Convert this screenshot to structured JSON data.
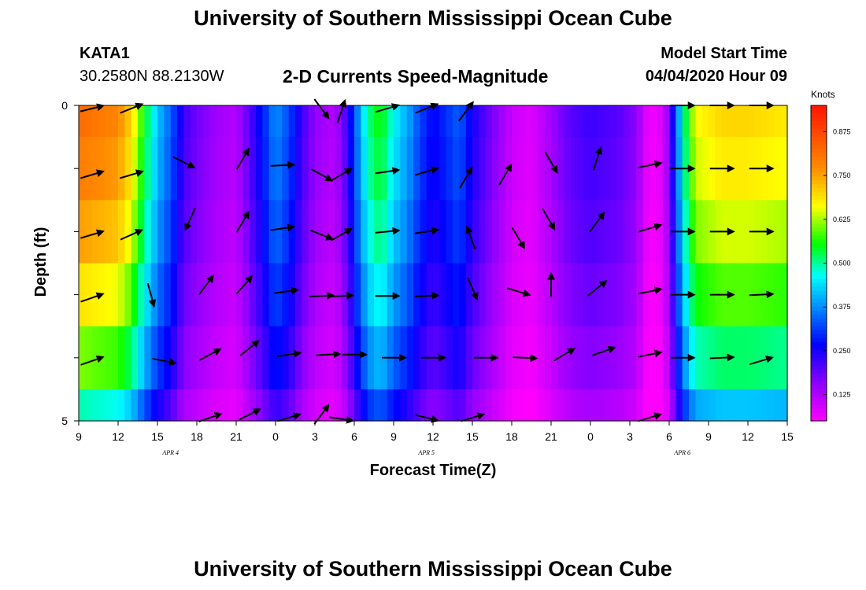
{
  "header": {
    "title": "University of Southern Mississippi Ocean Cube",
    "station_id": "KATA1",
    "station_coords": "30.2580N 88.2130W",
    "plot_title": "2-D Currents Speed-Magnitude",
    "model_label": "Model Start Time",
    "model_value": "04/04/2020 Hour 09"
  },
  "footer": {
    "title": "University of Southern Mississippi Ocean Cube"
  },
  "chart_data": {
    "type": "heatmap",
    "title": "2-D Currents Speed-Magnitude",
    "xlabel": "Forecast Time(Z)",
    "ylabel": "Depth (ft)",
    "x_range_hours": [
      0,
      54
    ],
    "x_ticks": [
      {
        "h": 0,
        "label": "9"
      },
      {
        "h": 3,
        "label": "12"
      },
      {
        "h": 6,
        "label": "15"
      },
      {
        "h": 9,
        "label": "18"
      },
      {
        "h": 12,
        "label": "21"
      },
      {
        "h": 15,
        "label": "0"
      },
      {
        "h": 18,
        "label": "3"
      },
      {
        "h": 21,
        "label": "6"
      },
      {
        "h": 24,
        "label": "9"
      },
      {
        "h": 27,
        "label": "12"
      },
      {
        "h": 30,
        "label": "15"
      },
      {
        "h": 33,
        "label": "18"
      },
      {
        "h": 36,
        "label": "21"
      },
      {
        "h": 39,
        "label": "0"
      },
      {
        "h": 42,
        "label": "3"
      },
      {
        "h": 45,
        "label": "6"
      },
      {
        "h": 48,
        "label": "9"
      },
      {
        "h": 51,
        "label": "12"
      },
      {
        "h": 54,
        "label": "15"
      }
    ],
    "date_labels": [
      {
        "h": 7,
        "label": "APR 4"
      },
      {
        "h": 26.5,
        "label": "APR 5"
      },
      {
        "h": 46,
        "label": "APR 6"
      }
    ],
    "y_range": [
      0,
      5
    ],
    "y_ticks": [
      {
        "v": 0,
        "label": "0"
      },
      {
        "v": 1,
        "label": ""
      },
      {
        "v": 2,
        "label": ""
      },
      {
        "v": 3,
        "label": ""
      },
      {
        "v": 4,
        "label": ""
      },
      {
        "v": 5,
        "label": "5"
      }
    ],
    "colorbar": {
      "title": "Knots",
      "range": [
        0.05,
        0.95
      ],
      "ticks": [
        "0.125",
        "0.250",
        "0.375",
        "0.500",
        "0.625",
        "0.750",
        "0.875"
      ],
      "tick_values": [
        0.125,
        0.25,
        0.375,
        0.5,
        0.625,
        0.75,
        0.875
      ]
    },
    "speed_profile_by_hour": [
      [
        0,
        0.82
      ],
      [
        3,
        0.78
      ],
      [
        4,
        0.7
      ],
      [
        5,
        0.55
      ],
      [
        6,
        0.42
      ],
      [
        7,
        0.34
      ],
      [
        8,
        0.22
      ],
      [
        9,
        0.18
      ],
      [
        10.5,
        0.14
      ],
      [
        12,
        0.12
      ],
      [
        13,
        0.2
      ],
      [
        14,
        0.28
      ],
      [
        15,
        0.38
      ],
      [
        16,
        0.32
      ],
      [
        17,
        0.22
      ],
      [
        18,
        0.15
      ],
      [
        19.5,
        0.12
      ],
      [
        20.5,
        0.22
      ],
      [
        21,
        0.32
      ],
      [
        22,
        0.5
      ],
      [
        23,
        0.56
      ],
      [
        24,
        0.46
      ],
      [
        25,
        0.4
      ],
      [
        26,
        0.32
      ],
      [
        27,
        0.26
      ],
      [
        28,
        0.3
      ],
      [
        29,
        0.34
      ],
      [
        30,
        0.25
      ],
      [
        31,
        0.2
      ],
      [
        32,
        0.15
      ],
      [
        33,
        0.1
      ],
      [
        34.5,
        0.08
      ],
      [
        36,
        0.14
      ],
      [
        37.5,
        0.2
      ],
      [
        39,
        0.22
      ],
      [
        41,
        0.2
      ],
      [
        42.5,
        0.16
      ],
      [
        43,
        0.1
      ],
      [
        43.5,
        0.06
      ],
      [
        44.5,
        0.08
      ],
      [
        45,
        0.18
      ],
      [
        45.5,
        0.32
      ],
      [
        46,
        0.48
      ],
      [
        46.5,
        0.58
      ],
      [
        47,
        0.66
      ],
      [
        49,
        0.7
      ],
      [
        51,
        0.7
      ],
      [
        54,
        0.68
      ]
    ],
    "depth_factors": [
      1.0,
      0.97,
      0.92,
      0.84,
      0.74,
      0.6
    ],
    "vectors": [
      {
        "h": 1.0,
        "d": 0.05,
        "u": 1.0,
        "v": 0.25
      },
      {
        "h": 4.0,
        "d": 0.05,
        "u": 1.0,
        "v": 0.4
      },
      {
        "h": 18.5,
        "d": 0.05,
        "u": 0.6,
        "v": -0.8
      },
      {
        "h": 20.0,
        "d": 0.1,
        "u": 0.3,
        "v": 0.9
      },
      {
        "h": 23.5,
        "d": 0.05,
        "u": 1.0,
        "v": 0.3
      },
      {
        "h": 26.5,
        "d": 0.05,
        "u": 1.0,
        "v": 0.4
      },
      {
        "h": 29.5,
        "d": 0.1,
        "u": 0.6,
        "v": 0.8
      },
      {
        "h": 46.0,
        "d": 0.0,
        "u": 1.0,
        "v": 0.0
      },
      {
        "h": 49.0,
        "d": 0.0,
        "u": 1.0,
        "v": 0.0
      },
      {
        "h": 52.0,
        "d": 0.0,
        "u": 1.0,
        "v": 0.0
      },
      {
        "h": 1.0,
        "d": 1.1,
        "u": 1.0,
        "v": 0.3
      },
      {
        "h": 4.0,
        "d": 1.1,
        "u": 1.0,
        "v": 0.3
      },
      {
        "h": 8.0,
        "d": 0.9,
        "u": 0.9,
        "v": -0.45
      },
      {
        "h": 12.5,
        "d": 0.85,
        "u": 0.5,
        "v": 0.85
      },
      {
        "h": 15.5,
        "d": 0.95,
        "u": 1.0,
        "v": 0.05
      },
      {
        "h": 18.5,
        "d": 1.1,
        "u": 0.9,
        "v": -0.5
      },
      {
        "h": 20.0,
        "d": 1.1,
        "u": 0.85,
        "v": 0.5
      },
      {
        "h": 23.5,
        "d": 1.05,
        "u": 1.0,
        "v": 0.15
      },
      {
        "h": 26.5,
        "d": 1.05,
        "u": 1.0,
        "v": 0.3
      },
      {
        "h": 29.5,
        "d": 1.15,
        "u": 0.5,
        "v": 0.85
      },
      {
        "h": 32.5,
        "d": 1.1,
        "u": 0.5,
        "v": 0.85
      },
      {
        "h": 36.0,
        "d": 0.9,
        "u": 0.5,
        "v": -0.85
      },
      {
        "h": 39.5,
        "d": 0.85,
        "u": 0.3,
        "v": 0.95
      },
      {
        "h": 43.5,
        "d": 0.95,
        "u": 1.0,
        "v": 0.2
      },
      {
        "h": 46.0,
        "d": 1.0,
        "u": 1.0,
        "v": 0.0
      },
      {
        "h": 49.0,
        "d": 1.0,
        "u": 1.0,
        "v": 0.0
      },
      {
        "h": 52.0,
        "d": 1.0,
        "u": 1.0,
        "v": 0.0
      },
      {
        "h": 1.0,
        "d": 2.05,
        "u": 1.0,
        "v": 0.3
      },
      {
        "h": 4.0,
        "d": 2.05,
        "u": 1.0,
        "v": 0.45
      },
      {
        "h": 8.5,
        "d": 1.8,
        "u": -0.4,
        "v": -0.9
      },
      {
        "h": 12.5,
        "d": 1.85,
        "u": 0.5,
        "v": 0.85
      },
      {
        "h": 15.5,
        "d": 1.95,
        "u": 1.0,
        "v": 0.15
      },
      {
        "h": 18.5,
        "d": 2.05,
        "u": 1.0,
        "v": -0.4
      },
      {
        "h": 20.0,
        "d": 2.05,
        "u": 0.85,
        "v": 0.5
      },
      {
        "h": 23.5,
        "d": 2.0,
        "u": 1.0,
        "v": 0.1
      },
      {
        "h": 26.5,
        "d": 2.0,
        "u": 1.0,
        "v": 0.15
      },
      {
        "h": 29.9,
        "d": 2.1,
        "u": -0.35,
        "v": 0.95
      },
      {
        "h": 33.5,
        "d": 2.1,
        "u": 0.5,
        "v": -0.85
      },
      {
        "h": 35.8,
        "d": 1.8,
        "u": 0.5,
        "v": -0.85
      },
      {
        "h": 39.5,
        "d": 1.85,
        "u": 0.6,
        "v": 0.8
      },
      {
        "h": 43.5,
        "d": 1.95,
        "u": 1.0,
        "v": 0.3
      },
      {
        "h": 46.0,
        "d": 2.0,
        "u": 1.0,
        "v": 0.0
      },
      {
        "h": 49.0,
        "d": 2.0,
        "u": 1.0,
        "v": 0.0
      },
      {
        "h": 52.0,
        "d": 2.0,
        "u": 1.0,
        "v": 0.0
      },
      {
        "h": 1.0,
        "d": 3.05,
        "u": 1.0,
        "v": 0.35
      },
      {
        "h": 5.5,
        "d": 3.0,
        "u": 0.25,
        "v": -0.95
      },
      {
        "h": 9.7,
        "d": 2.85,
        "u": 0.6,
        "v": 0.8
      },
      {
        "h": 12.6,
        "d": 2.85,
        "u": 0.65,
        "v": 0.75
      },
      {
        "h": 15.8,
        "d": 2.95,
        "u": 1.0,
        "v": 0.15
      },
      {
        "h": 18.5,
        "d": 3.02,
        "u": 1.0,
        "v": 0.05
      },
      {
        "h": 20.0,
        "d": 3.02,
        "u": 1.0,
        "v": 0.05
      },
      {
        "h": 23.5,
        "d": 3.02,
        "u": 1.0,
        "v": 0.0
      },
      {
        "h": 26.5,
        "d": 3.02,
        "u": 1.0,
        "v": 0.05
      },
      {
        "h": 30.0,
        "d": 2.9,
        "u": 0.4,
        "v": -0.9
      },
      {
        "h": 33.5,
        "d": 2.95,
        "u": 1.0,
        "v": -0.3
      },
      {
        "h": 36.0,
        "d": 2.85,
        "u": 0.0,
        "v": 1.0
      },
      {
        "h": 39.5,
        "d": 2.9,
        "u": 0.75,
        "v": 0.6
      },
      {
        "h": 43.5,
        "d": 2.95,
        "u": 1.0,
        "v": 0.2
      },
      {
        "h": 46.0,
        "d": 3.0,
        "u": 1.0,
        "v": 0.0
      },
      {
        "h": 49.0,
        "d": 3.0,
        "u": 1.0,
        "v": 0.0
      },
      {
        "h": 52.0,
        "d": 3.0,
        "u": 1.0,
        "v": 0.05
      },
      {
        "h": 1.0,
        "d": 4.05,
        "u": 1.0,
        "v": 0.35
      },
      {
        "h": 6.5,
        "d": 4.05,
        "u": 1.0,
        "v": -0.2
      },
      {
        "h": 10.0,
        "d": 3.95,
        "u": 0.85,
        "v": 0.45
      },
      {
        "h": 13.0,
        "d": 3.85,
        "u": 0.75,
        "v": 0.6
      },
      {
        "h": 16.0,
        "d": 3.95,
        "u": 1.0,
        "v": 0.15
      },
      {
        "h": 19.0,
        "d": 3.95,
        "u": 1.0,
        "v": 0.05
      },
      {
        "h": 21.0,
        "d": 3.95,
        "u": 1.0,
        "v": 0.0
      },
      {
        "h": 24.0,
        "d": 4.0,
        "u": 1.0,
        "v": 0.0
      },
      {
        "h": 27.0,
        "d": 4.0,
        "u": 1.0,
        "v": 0.0
      },
      {
        "h": 31.0,
        "d": 4.0,
        "u": 1.0,
        "v": 0.0
      },
      {
        "h": 34.0,
        "d": 4.0,
        "u": 1.0,
        "v": -0.05
      },
      {
        "h": 37.0,
        "d": 3.95,
        "u": 0.85,
        "v": 0.5
      },
      {
        "h": 40.0,
        "d": 3.9,
        "u": 1.0,
        "v": 0.35
      },
      {
        "h": 43.5,
        "d": 3.95,
        "u": 1.0,
        "v": 0.2
      },
      {
        "h": 46.0,
        "d": 4.0,
        "u": 1.0,
        "v": 0.0
      },
      {
        "h": 49.0,
        "d": 4.0,
        "u": 1.0,
        "v": 0.05
      },
      {
        "h": 52.0,
        "d": 4.05,
        "u": 1.0,
        "v": 0.3
      },
      {
        "h": 10.0,
        "d": 4.95,
        "u": 1.0,
        "v": 0.35
      },
      {
        "h": 13.0,
        "d": 4.9,
        "u": 0.9,
        "v": 0.45
      },
      {
        "h": 16.0,
        "d": 4.95,
        "u": 1.0,
        "v": 0.3
      },
      {
        "h": 18.5,
        "d": 4.9,
        "u": 0.6,
        "v": 0.8
      },
      {
        "h": 20.0,
        "d": 4.97,
        "u": 1.0,
        "v": -0.15
      },
      {
        "h": 26.5,
        "d": 4.95,
        "u": 1.0,
        "v": -0.25
      },
      {
        "h": 30.0,
        "d": 4.95,
        "u": 1.0,
        "v": 0.3
      },
      {
        "h": 43.5,
        "d": 4.95,
        "u": 1.0,
        "v": 0.3
      }
    ]
  }
}
